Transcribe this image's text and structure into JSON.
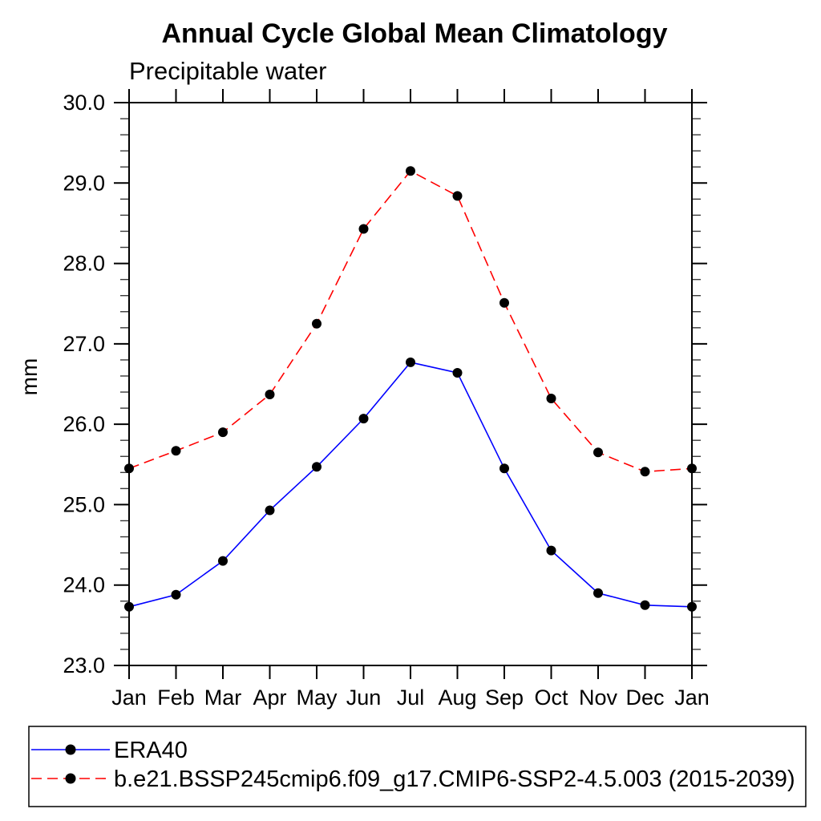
{
  "chart_data": {
    "type": "line",
    "title": "Annual Cycle Global Mean Climatology",
    "subtitle": "Precipitable water",
    "ylabel": "mm",
    "xlabel": "",
    "categories": [
      "Jan",
      "Feb",
      "Mar",
      "Apr",
      "May",
      "Jun",
      "Jul",
      "Aug",
      "Sep",
      "Oct",
      "Nov",
      "Dec",
      "Jan"
    ],
    "ylim": [
      23.0,
      30.0
    ],
    "ytick_interval": 1.0,
    "yminor_interval": 0.2,
    "ytick_labels": [
      "23.0",
      "24.0",
      "25.0",
      "26.0",
      "27.0",
      "28.0",
      "29.0",
      "30.0"
    ],
    "grid": false,
    "frame": "boxed-with-outward-ticks",
    "legend_position": "bottom-left-box",
    "series": [
      {
        "name": "ERA40",
        "line_color": "#0000ff",
        "line_style": "solid",
        "marker": "filled-circle",
        "marker_color": "#000000",
        "values": [
          23.73,
          23.88,
          24.3,
          24.93,
          25.47,
          26.07,
          26.77,
          26.64,
          25.45,
          24.43,
          23.9,
          23.75,
          23.73
        ]
      },
      {
        "name": "b.e21.BSSP245cmip6.f09_g17.CMIP6-SSP2-4.5.003 (2015-2039)",
        "line_color": "#ff0000",
        "line_style": "dashed",
        "marker": "filled-circle",
        "marker_color": "#000000",
        "values": [
          25.45,
          25.67,
          25.9,
          26.37,
          27.25,
          28.43,
          29.15,
          28.84,
          27.51,
          26.32,
          25.65,
          25.41,
          25.45
        ]
      }
    ]
  },
  "colors": {
    "axis": "#000000",
    "text": "#000000",
    "background": "#ffffff"
  }
}
